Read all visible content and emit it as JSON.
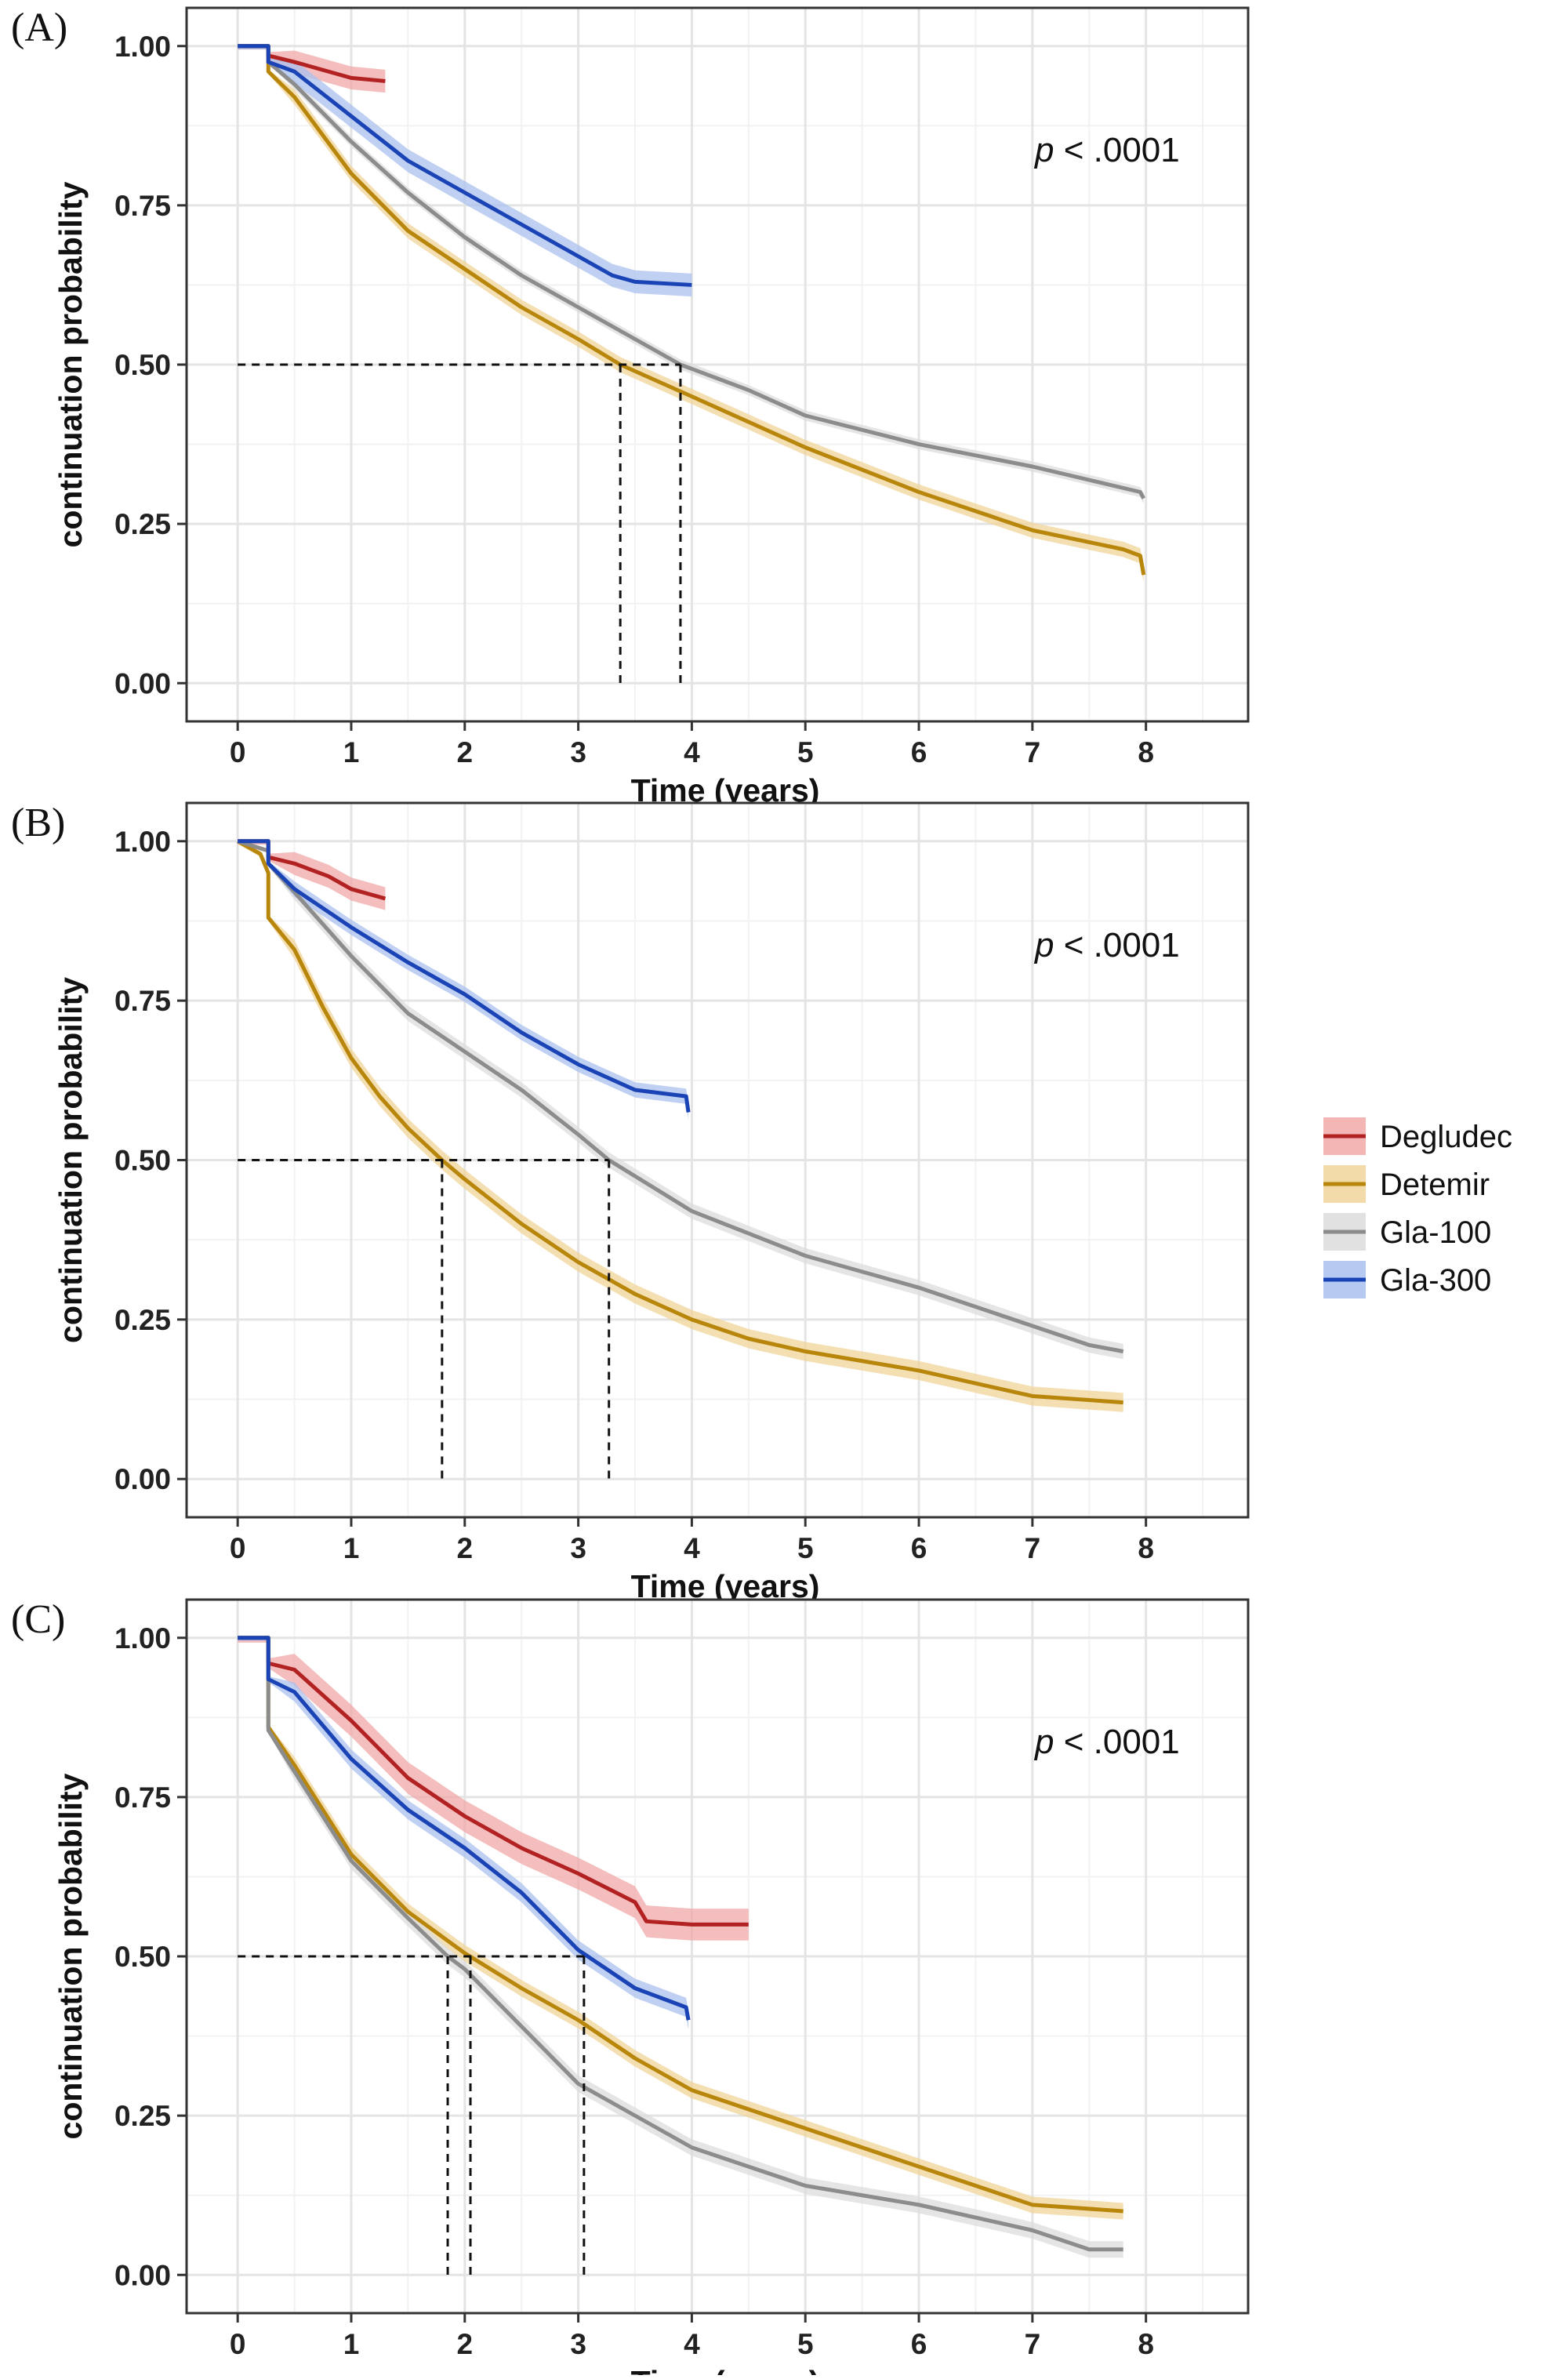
{
  "chart_data": [
    {
      "type": "line",
      "panel_label": "(A)",
      "xlabel": "Time (years)",
      "ylabel": "continuation probability",
      "annotation": {
        "italic": "p",
        "text": " < .0001"
      },
      "xlim": [
        -0.45,
        8.9
      ],
      "ylim": [
        -0.06,
        1.06
      ],
      "xticks": [
        "0",
        "1",
        "2",
        "3",
        "4",
        "5",
        "6",
        "7",
        "8"
      ],
      "yticks": [
        "0.00",
        "0.25",
        "0.50",
        "0.75",
        "1.00"
      ],
      "medians": [
        {
          "x": 3.37,
          "series": "Detemir"
        },
        {
          "x": 3.9,
          "series": "Gla-100"
        }
      ],
      "series": [
        {
          "name": "Degludec",
          "ci": 0.018,
          "points": [
            [
              0,
              1
            ],
            [
              0.27,
              1
            ],
            [
              0.27,
              0.985
            ],
            [
              0.5,
              0.975
            ],
            [
              0.8,
              0.96
            ],
            [
              1.0,
              0.95
            ],
            [
              1.3,
              0.945
            ]
          ]
        },
        {
          "name": "Detemir",
          "ci": 0.012,
          "points": [
            [
              0,
              1
            ],
            [
              0.27,
              1
            ],
            [
              0.27,
              0.96
            ],
            [
              0.5,
              0.92
            ],
            [
              1,
              0.8
            ],
            [
              1.5,
              0.71
            ],
            [
              2,
              0.65
            ],
            [
              2.5,
              0.59
            ],
            [
              3,
              0.54
            ],
            [
              3.37,
              0.5
            ],
            [
              4,
              0.45
            ],
            [
              5,
              0.37
            ],
            [
              6,
              0.3
            ],
            [
              7,
              0.24
            ],
            [
              7.8,
              0.21
            ],
            [
              7.95,
              0.2
            ],
            [
              7.98,
              0.17
            ]
          ]
        },
        {
          "name": "Gla-100",
          "ci": 0.008,
          "points": [
            [
              0,
              1
            ],
            [
              0.27,
              1
            ],
            [
              0.27,
              0.975
            ],
            [
              0.5,
              0.94
            ],
            [
              1,
              0.85
            ],
            [
              1.5,
              0.77
            ],
            [
              2,
              0.7
            ],
            [
              2.5,
              0.64
            ],
            [
              3,
              0.59
            ],
            [
              3.9,
              0.5
            ],
            [
              4.5,
              0.46
            ],
            [
              5,
              0.42
            ],
            [
              6,
              0.375
            ],
            [
              7,
              0.34
            ],
            [
              7.95,
              0.3
            ],
            [
              7.98,
              0.29
            ]
          ]
        },
        {
          "name": "Gla-300",
          "ci": 0.018,
          "points": [
            [
              0,
              1
            ],
            [
              0.27,
              1
            ],
            [
              0.27,
              0.975
            ],
            [
              0.5,
              0.96
            ],
            [
              1,
              0.89
            ],
            [
              1.5,
              0.82
            ],
            [
              2,
              0.77
            ],
            [
              2.5,
              0.72
            ],
            [
              3,
              0.67
            ],
            [
              3.3,
              0.64
            ],
            [
              3.5,
              0.63
            ],
            [
              4,
              0.625
            ]
          ]
        }
      ]
    },
    {
      "type": "line",
      "panel_label": "(B)",
      "xlabel": "Time (years)",
      "ylabel": "continuation probability",
      "annotation": {
        "italic": "p",
        "text": " < .0001"
      },
      "xlim": [
        -0.45,
        8.9
      ],
      "ylim": [
        -0.06,
        1.06
      ],
      "xticks": [
        "0",
        "1",
        "2",
        "3",
        "4",
        "5",
        "6",
        "7",
        "8"
      ],
      "yticks": [
        "0.00",
        "0.25",
        "0.50",
        "0.75",
        "1.00"
      ],
      "medians": [
        {
          "x": 1.8,
          "series": "Detemir"
        },
        {
          "x": 3.27,
          "series": "Gla-100"
        }
      ],
      "series": [
        {
          "name": "Degludec",
          "ci": 0.018,
          "points": [
            [
              0,
              1
            ],
            [
              0.27,
              1
            ],
            [
              0.27,
              0.975
            ],
            [
              0.5,
              0.965
            ],
            [
              0.8,
              0.945
            ],
            [
              1.0,
              0.925
            ],
            [
              1.3,
              0.91
            ]
          ]
        },
        {
          "name": "Detemir",
          "ci": 0.015,
          "points": [
            [
              0,
              1
            ],
            [
              0.2,
              0.98
            ],
            [
              0.27,
              0.95
            ],
            [
              0.27,
              0.88
            ],
            [
              0.5,
              0.83
            ],
            [
              0.75,
              0.74
            ],
            [
              1,
              0.66
            ],
            [
              1.25,
              0.6
            ],
            [
              1.5,
              0.55
            ],
            [
              1.8,
              0.5
            ],
            [
              2,
              0.47
            ],
            [
              2.5,
              0.4
            ],
            [
              3,
              0.34
            ],
            [
              3.5,
              0.29
            ],
            [
              4,
              0.25
            ],
            [
              4.5,
              0.22
            ],
            [
              5,
              0.2
            ],
            [
              6,
              0.17
            ],
            [
              7,
              0.13
            ],
            [
              7.8,
              0.12
            ]
          ]
        },
        {
          "name": "Gla-100",
          "ci": 0.012,
          "points": [
            [
              0,
              1
            ],
            [
              0.27,
              0.985
            ],
            [
              0.27,
              0.965
            ],
            [
              0.5,
              0.92
            ],
            [
              1,
              0.82
            ],
            [
              1.5,
              0.73
            ],
            [
              2,
              0.67
            ],
            [
              2.5,
              0.61
            ],
            [
              3,
              0.54
            ],
            [
              3.27,
              0.5
            ],
            [
              4,
              0.42
            ],
            [
              5,
              0.35
            ],
            [
              6,
              0.3
            ],
            [
              7,
              0.24
            ],
            [
              7.5,
              0.21
            ],
            [
              7.8,
              0.2
            ]
          ]
        },
        {
          "name": "Gla-300",
          "ci": 0.012,
          "points": [
            [
              0,
              1
            ],
            [
              0.27,
              1
            ],
            [
              0.27,
              0.965
            ],
            [
              0.5,
              0.925
            ],
            [
              1,
              0.865
            ],
            [
              1.5,
              0.81
            ],
            [
              2,
              0.76
            ],
            [
              2.5,
              0.7
            ],
            [
              3,
              0.65
            ],
            [
              3.5,
              0.61
            ],
            [
              3.95,
              0.6
            ],
            [
              3.97,
              0.575
            ]
          ]
        }
      ]
    },
    {
      "type": "line",
      "panel_label": "(C)",
      "xlabel": "Time (years)",
      "ylabel": "continuation probability",
      "annotation": {
        "italic": "p",
        "text": " < .0001"
      },
      "xlim": [
        -0.45,
        8.9
      ],
      "ylim": [
        -0.06,
        1.06
      ],
      "xticks": [
        "0",
        "1",
        "2",
        "3",
        "4",
        "5",
        "6",
        "7",
        "8"
      ],
      "yticks": [
        "0.00",
        "0.25",
        "0.50",
        "0.75",
        "1.00"
      ],
      "medians": [
        {
          "x": 1.85,
          "series": "Gla-100"
        },
        {
          "x": 2.05,
          "series": "Detemir"
        },
        {
          "x": 3.05,
          "series": "Gla-300"
        }
      ],
      "series": [
        {
          "name": "Degludec",
          "ci": 0.025,
          "points": [
            [
              0,
              1
            ],
            [
              0.27,
              1
            ],
            [
              0.27,
              0.96
            ],
            [
              0.5,
              0.95
            ],
            [
              1,
              0.87
            ],
            [
              1.5,
              0.78
            ],
            [
              2,
              0.72
            ],
            [
              2.5,
              0.67
            ],
            [
              3,
              0.63
            ],
            [
              3.5,
              0.585
            ],
            [
              3.6,
              0.555
            ],
            [
              4,
              0.55
            ],
            [
              4.5,
              0.55
            ]
          ]
        },
        {
          "name": "Detemir",
          "ci": 0.013,
          "points": [
            [
              0,
              1
            ],
            [
              0.27,
              1
            ],
            [
              0.27,
              0.86
            ],
            [
              0.5,
              0.8
            ],
            [
              1,
              0.66
            ],
            [
              1.5,
              0.57
            ],
            [
              2,
              0.505
            ],
            [
              2.5,
              0.45
            ],
            [
              3,
              0.4
            ],
            [
              3.5,
              0.34
            ],
            [
              4,
              0.29
            ],
            [
              5,
              0.23
            ],
            [
              6,
              0.17
            ],
            [
              7,
              0.11
            ],
            [
              7.8,
              0.1
            ]
          ]
        },
        {
          "name": "Gla-100",
          "ci": 0.013,
          "points": [
            [
              0,
              1
            ],
            [
              0.27,
              1
            ],
            [
              0.27,
              0.855
            ],
            [
              0.5,
              0.79
            ],
            [
              1,
              0.65
            ],
            [
              1.5,
              0.56
            ],
            [
              1.85,
              0.5
            ],
            [
              2,
              0.48
            ],
            [
              2.5,
              0.39
            ],
            [
              3,
              0.3
            ],
            [
              3.5,
              0.25
            ],
            [
              4,
              0.2
            ],
            [
              5,
              0.14
            ],
            [
              6,
              0.11
            ],
            [
              7,
              0.07
            ],
            [
              7.5,
              0.04
            ],
            [
              7.8,
              0.04
            ]
          ]
        },
        {
          "name": "Gla-300",
          "ci": 0.015,
          "points": [
            [
              0,
              1
            ],
            [
              0.27,
              1
            ],
            [
              0.27,
              0.935
            ],
            [
              0.5,
              0.915
            ],
            [
              1,
              0.81
            ],
            [
              1.5,
              0.73
            ],
            [
              2,
              0.67
            ],
            [
              2.5,
              0.6
            ],
            [
              3,
              0.51
            ],
            [
              3.5,
              0.45
            ],
            [
              3.95,
              0.42
            ],
            [
              3.97,
              0.4
            ]
          ]
        }
      ]
    }
  ],
  "legend": {
    "items": [
      {
        "name": "Degludec",
        "color": "#b22222",
        "fill": "#f2a8a8"
      },
      {
        "name": "Detemir",
        "color": "#b8860b",
        "fill": "#f0d49a"
      },
      {
        "name": "Gla-100",
        "color": "#8c8c8c",
        "fill": "#dcdcdc"
      },
      {
        "name": "Gla-300",
        "color": "#1a43b5",
        "fill": "#a9c0ee"
      }
    ]
  }
}
